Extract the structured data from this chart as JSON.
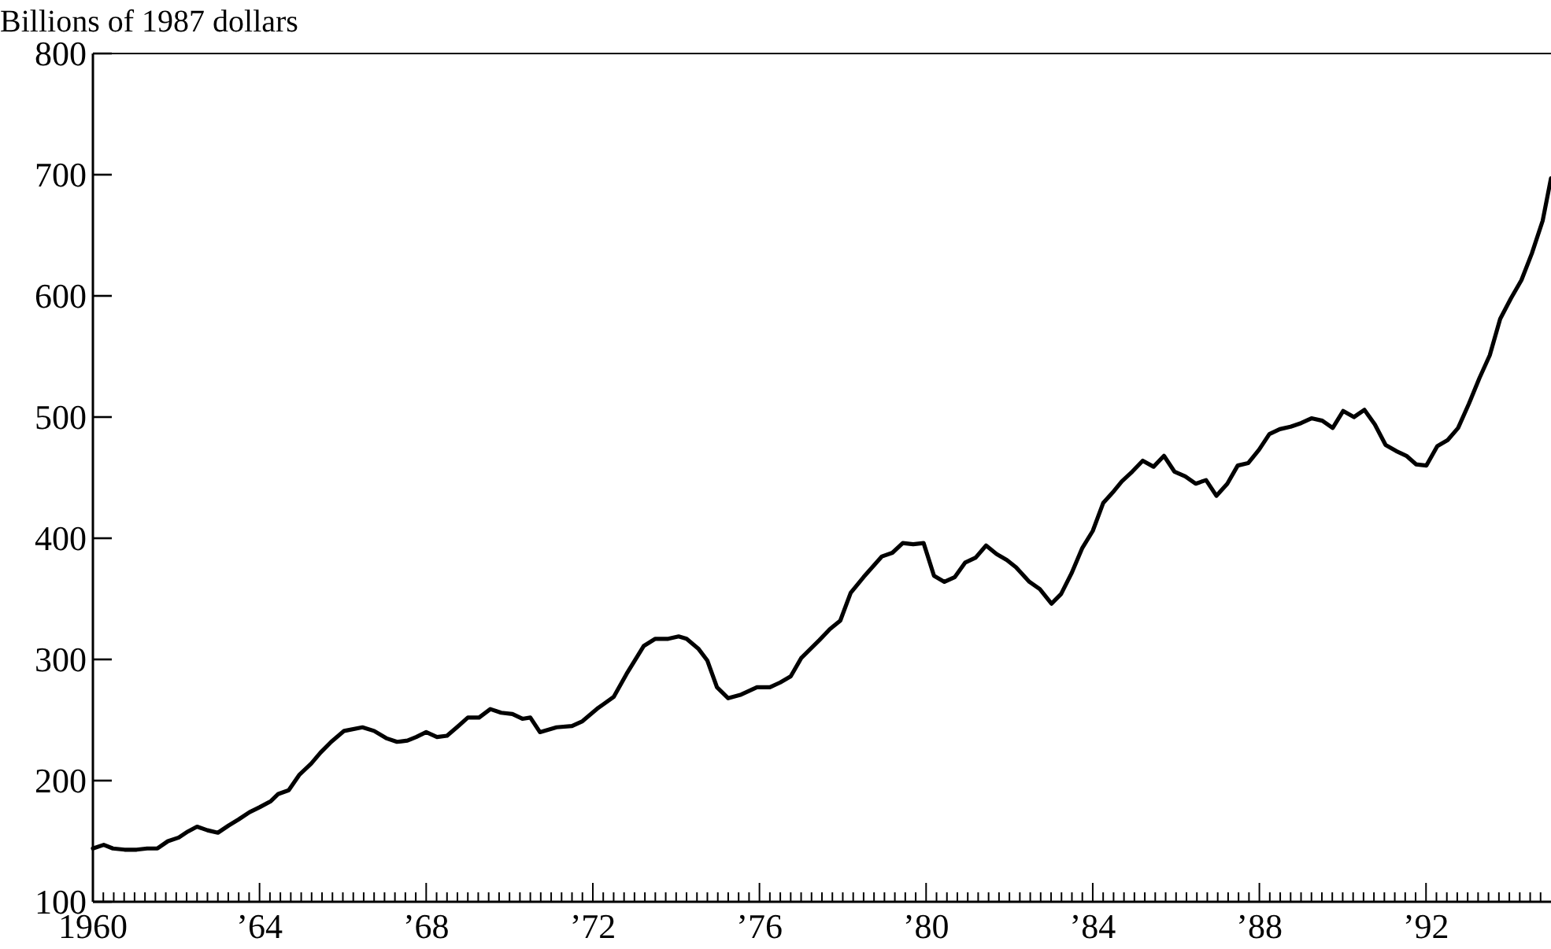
{
  "chart_data": {
    "type": "line",
    "ylabel": "Billions of 1987 dollars",
    "xlim": [
      1960,
      1995
    ],
    "ylim": [
      100,
      800
    ],
    "yticks": [
      100,
      200,
      300,
      400,
      500,
      600,
      700,
      800
    ],
    "xticks": [
      {
        "value": 1960,
        "label": "1960"
      },
      {
        "value": 1964,
        "label": "’64"
      },
      {
        "value": 1968,
        "label": "’68"
      },
      {
        "value": 1972,
        "label": "’72"
      },
      {
        "value": 1976,
        "label": "’76"
      },
      {
        "value": 1980,
        "label": "’80"
      },
      {
        "value": 1984,
        "label": "’84"
      },
      {
        "value": 1988,
        "label": "’88"
      },
      {
        "value": 1992,
        "label": "’92"
      },
      {
        "value": 1960.25,
        "label": null
      },
      {
        "value": 1960.5,
        "label": null
      },
      {
        "value": 1960.75,
        "label": null
      },
      {
        "value": 1961,
        "label": null
      },
      {
        "value": 1961.25,
        "label": null
      },
      {
        "value": 1961.5,
        "label": null
      },
      {
        "value": 1961.75,
        "label": null
      },
      {
        "value": 1962,
        "label": null
      },
      {
        "value": 1962.25,
        "label": null
      },
      {
        "value": 1962.5,
        "label": null
      },
      {
        "value": 1962.75,
        "label": null
      },
      {
        "value": 1963,
        "label": null
      },
      {
        "value": 1963.25,
        "label": null
      },
      {
        "value": 1963.5,
        "label": null
      },
      {
        "value": 1963.75,
        "label": null
      },
      {
        "value": 1964.25,
        "label": null
      },
      {
        "value": 1964.5,
        "label": null
      },
      {
        "value": 1964.75,
        "label": null
      },
      {
        "value": 1965,
        "label": null
      },
      {
        "value": 1965.25,
        "label": null
      },
      {
        "value": 1965.5,
        "label": null
      },
      {
        "value": 1965.75,
        "label": null
      },
      {
        "value": 1966,
        "label": null
      },
      {
        "value": 1966.25,
        "label": null
      },
      {
        "value": 1966.5,
        "label": null
      },
      {
        "value": 1966.75,
        "label": null
      },
      {
        "value": 1967,
        "label": null
      },
      {
        "value": 1967.25,
        "label": null
      },
      {
        "value": 1967.5,
        "label": null
      },
      {
        "value": 1967.75,
        "label": null
      },
      {
        "value": 1968.25,
        "label": null
      },
      {
        "value": 1968.5,
        "label": null
      },
      {
        "value": 1968.75,
        "label": null
      },
      {
        "value": 1969,
        "label": null
      },
      {
        "value": 1969.25,
        "label": null
      },
      {
        "value": 1969.5,
        "label": null
      },
      {
        "value": 1969.75,
        "label": null
      },
      {
        "value": 1970,
        "label": null
      },
      {
        "value": 1970.25,
        "label": null
      },
      {
        "value": 1970.5,
        "label": null
      },
      {
        "value": 1970.75,
        "label": null
      },
      {
        "value": 1971,
        "label": null
      },
      {
        "value": 1971.25,
        "label": null
      },
      {
        "value": 1971.5,
        "label": null
      },
      {
        "value": 1971.75,
        "label": null
      },
      {
        "value": 1972.25,
        "label": null
      },
      {
        "value": 1972.5,
        "label": null
      },
      {
        "value": 1972.75,
        "label": null
      },
      {
        "value": 1973,
        "label": null
      },
      {
        "value": 1973.25,
        "label": null
      },
      {
        "value": 1973.5,
        "label": null
      },
      {
        "value": 1973.75,
        "label": null
      },
      {
        "value": 1974,
        "label": null
      },
      {
        "value": 1974.25,
        "label": null
      },
      {
        "value": 1974.5,
        "label": null
      },
      {
        "value": 1974.75,
        "label": null
      },
      {
        "value": 1975,
        "label": null
      },
      {
        "value": 1975.25,
        "label": null
      },
      {
        "value": 1975.5,
        "label": null
      },
      {
        "value": 1975.75,
        "label": null
      },
      {
        "value": 1976.25,
        "label": null
      },
      {
        "value": 1976.5,
        "label": null
      },
      {
        "value": 1976.75,
        "label": null
      },
      {
        "value": 1977,
        "label": null
      },
      {
        "value": 1977.25,
        "label": null
      },
      {
        "value": 1977.5,
        "label": null
      },
      {
        "value": 1977.75,
        "label": null
      },
      {
        "value": 1978,
        "label": null
      },
      {
        "value": 1978.25,
        "label": null
      },
      {
        "value": 1978.5,
        "label": null
      },
      {
        "value": 1978.75,
        "label": null
      },
      {
        "value": 1979,
        "label": null
      },
      {
        "value": 1979.25,
        "label": null
      },
      {
        "value": 1979.5,
        "label": null
      },
      {
        "value": 1979.75,
        "label": null
      },
      {
        "value": 1980.25,
        "label": null
      },
      {
        "value": 1980.5,
        "label": null
      },
      {
        "value": 1980.75,
        "label": null
      },
      {
        "value": 1981,
        "label": null
      },
      {
        "value": 1981.25,
        "label": null
      },
      {
        "value": 1981.5,
        "label": null
      },
      {
        "value": 1981.75,
        "label": null
      },
      {
        "value": 1982,
        "label": null
      },
      {
        "value": 1982.25,
        "label": null
      },
      {
        "value": 1982.5,
        "label": null
      },
      {
        "value": 1982.75,
        "label": null
      },
      {
        "value": 1983,
        "label": null
      },
      {
        "value": 1983.25,
        "label": null
      },
      {
        "value": 1983.5,
        "label": null
      },
      {
        "value": 1983.75,
        "label": null
      },
      {
        "value": 1984.25,
        "label": null
      },
      {
        "value": 1984.5,
        "label": null
      },
      {
        "value": 1984.75,
        "label": null
      },
      {
        "value": 1985,
        "label": null
      },
      {
        "value": 1985.25,
        "label": null
      },
      {
        "value": 1985.5,
        "label": null
      },
      {
        "value": 1985.75,
        "label": null
      },
      {
        "value": 1986,
        "label": null
      },
      {
        "value": 1986.25,
        "label": null
      },
      {
        "value": 1986.5,
        "label": null
      },
      {
        "value": 1986.75,
        "label": null
      },
      {
        "value": 1987,
        "label": null
      },
      {
        "value": 1987.25,
        "label": null
      },
      {
        "value": 1987.5,
        "label": null
      },
      {
        "value": 1987.75,
        "label": null
      },
      {
        "value": 1988.25,
        "label": null
      },
      {
        "value": 1988.5,
        "label": null
      },
      {
        "value": 1988.75,
        "label": null
      },
      {
        "value": 1989,
        "label": null
      },
      {
        "value": 1989.25,
        "label": null
      },
      {
        "value": 1989.5,
        "label": null
      },
      {
        "value": 1989.75,
        "label": null
      },
      {
        "value": 1990,
        "label": null
      },
      {
        "value": 1990.25,
        "label": null
      },
      {
        "value": 1990.5,
        "label": null
      },
      {
        "value": 1990.75,
        "label": null
      },
      {
        "value": 1991,
        "label": null
      },
      {
        "value": 1991.25,
        "label": null
      },
      {
        "value": 1991.5,
        "label": null
      },
      {
        "value": 1991.75,
        "label": null
      },
      {
        "value": 1992.25,
        "label": null
      },
      {
        "value": 1992.5,
        "label": null
      },
      {
        "value": 1992.75,
        "label": null
      },
      {
        "value": 1993,
        "label": null
      },
      {
        "value": 1993.25,
        "label": null
      },
      {
        "value": 1993.5,
        "label": null
      },
      {
        "value": 1993.75,
        "label": null
      },
      {
        "value": 1994,
        "label": null
      },
      {
        "value": 1994.25,
        "label": null
      },
      {
        "value": 1994.5,
        "label": null
      },
      {
        "value": 1994.75,
        "label": null
      }
    ],
    "series": [
      {
        "color": "#000000",
        "x": [
          1960,
          1960.26,
          1960.48,
          1960.76,
          1961.05,
          1961.3,
          1961.55,
          1961.8,
          1962.06,
          1962.28,
          1962.5,
          1962.75,
          1963,
          1963.26,
          1963.5,
          1963.76,
          1964,
          1964.27,
          1964.45,
          1964.7,
          1964.96,
          1965.24,
          1965.46,
          1965.72,
          1966.03,
          1966.47,
          1966.75,
          1967.04,
          1967.3,
          1967.55,
          1967.76,
          1968,
          1968.26,
          1968.5,
          1968.77,
          1969,
          1969.27,
          1969.54,
          1969.8,
          1970.07,
          1970.31,
          1970.5,
          1970.73,
          1971.13,
          1971.5,
          1971.75,
          1972.13,
          1972.5,
          1972.81,
          1973.22,
          1973.5,
          1973.81,
          1974.06,
          1974.25,
          1974.53,
          1974.75,
          1974.98,
          1975.25,
          1975.56,
          1975.94,
          1976.25,
          1976.5,
          1976.75,
          1977,
          1977.44,
          1977.69,
          1977.94,
          1978.19,
          1978.5,
          1978.94,
          1979.19,
          1979.44,
          1979.69,
          1979.94,
          1980.19,
          1980.44,
          1980.69,
          1980.94,
          1981.19,
          1981.44,
          1981.69,
          1981.94,
          1982.16,
          1982.48,
          1982.73,
          1983.01,
          1983.24,
          1983.49,
          1983.75,
          1984,
          1984.25,
          1984.51,
          1984.7,
          1984.95,
          1985.2,
          1985.46,
          1985.71,
          1985.96,
          1986.22,
          1986.47,
          1986.72,
          1986.97,
          1987.23,
          1987.48,
          1987.73,
          1987.99,
          1988.24,
          1988.49,
          1988.75,
          1989,
          1989.25,
          1989.51,
          1989.76,
          1990.01,
          1990.27,
          1990.52,
          1990.77,
          1991.03,
          1991.28,
          1991.53,
          1991.76,
          1992.01,
          1992.27,
          1992.52,
          1992.77,
          1993.03,
          1993.28,
          1993.53,
          1993.78,
          1994.04,
          1994.29,
          1994.54,
          1994.8,
          1995
        ],
        "values": [
          144,
          147,
          144,
          143,
          143,
          144,
          144,
          150,
          153,
          158,
          162,
          159,
          157,
          163,
          168,
          174,
          178,
          183,
          189,
          192,
          205,
          214,
          223,
          232,
          241,
          244,
          241,
          235,
          232,
          233,
          236,
          240,
          236,
          237,
          245,
          252,
          252,
          259,
          256,
          255,
          251,
          252,
          240,
          244,
          245,
          249,
          260,
          269,
          288,
          311,
          317,
          317,
          319,
          317,
          309,
          299,
          277,
          268,
          271,
          277,
          277,
          281,
          286,
          301,
          316,
          325,
          332,
          355,
          368,
          385,
          388,
          396,
          395,
          396,
          369,
          364,
          368,
          380,
          384,
          394,
          387,
          382,
          376,
          364,
          358,
          346,
          354,
          371,
          392,
          406,
          429,
          439,
          447,
          455,
          464,
          459,
          468,
          455,
          451,
          445,
          448,
          435,
          445,
          460,
          462,
          473,
          486,
          490,
          492,
          495,
          499,
          497,
          491,
          505,
          500,
          506,
          494,
          477,
          472,
          468,
          461,
          460,
          476,
          481,
          491,
          511,
          532,
          551,
          581,
          598,
          613,
          635,
          662,
          697
        ]
      }
    ]
  }
}
